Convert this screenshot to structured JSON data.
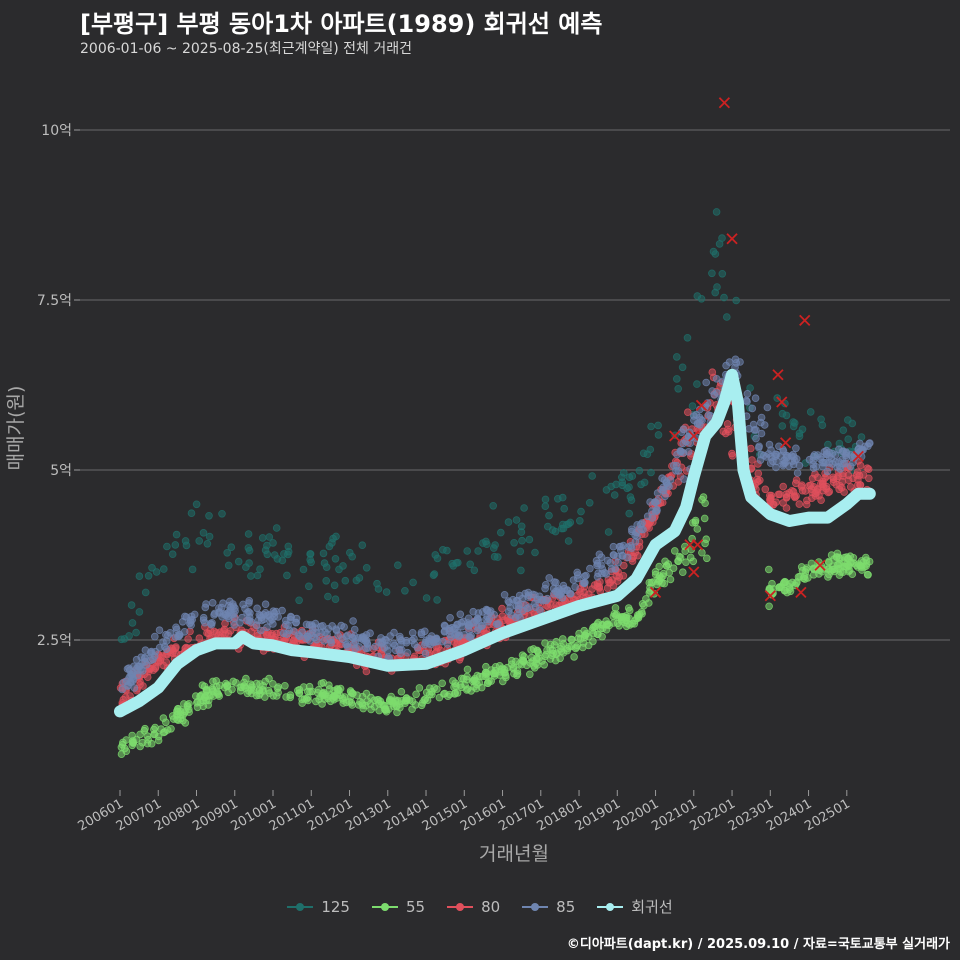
{
  "header": {
    "title": "[부평구] 부평 동아1차 아파트(1989) 회귀선 예측",
    "subtitle": "2006-01-06 ~ 2025-08-25(최근계약일) 전체 거래건"
  },
  "footer": "©디아파트(dapt.kr) / 2025.09.10 / 자료=국토교통부 실거래가",
  "colors": {
    "s125": "#1f6f6a",
    "s55": "#7ddc6e",
    "s80": "#e0505c",
    "s85": "#6f85b0",
    "regression": "#a8eef0",
    "grid": "#6a6a6a",
    "cancel_mark": "#cc2222"
  },
  "legend": [
    {
      "key": "s125",
      "label": "125"
    },
    {
      "key": "s55",
      "label": "55"
    },
    {
      "key": "s80",
      "label": "80"
    },
    {
      "key": "s85",
      "label": "85"
    },
    {
      "key": "regression",
      "label": "회귀선"
    }
  ],
  "chart_data": {
    "type": "scatter",
    "title": "[부평구] 부평 동아1차 아파트(1989) 회귀선 예측",
    "xlabel": "거래년월",
    "ylabel": "매매가(원)",
    "x_range": [
      2006.0,
      2025.92
    ],
    "ylim": [
      0.8,
      10.9
    ],
    "y_ticks": [
      {
        "v": 2.5,
        "label": "2.5억"
      },
      {
        "v": 5,
        "label": "5억"
      },
      {
        "v": 7.5,
        "label": "7.5억"
      },
      {
        "v": 10,
        "label": "10억"
      }
    ],
    "x_ticks": [
      {
        "v": 2006.0,
        "label": "200601"
      },
      {
        "v": 2007.0,
        "label": "200701"
      },
      {
        "v": 2008.0,
        "label": "200801"
      },
      {
        "v": 2009.0,
        "label": "200901"
      },
      {
        "v": 2010.0,
        "label": "201001"
      },
      {
        "v": 2011.0,
        "label": "201101"
      },
      {
        "v": 2012.0,
        "label": "201201"
      },
      {
        "v": 2013.0,
        "label": "201301"
      },
      {
        "v": 2014.0,
        "label": "201401"
      },
      {
        "v": 2015.0,
        "label": "201501"
      },
      {
        "v": 2016.0,
        "label": "201601"
      },
      {
        "v": 2017.0,
        "label": "201701"
      },
      {
        "v": 2018.0,
        "label": "201801"
      },
      {
        "v": 2019.0,
        "label": "201901"
      },
      {
        "v": 2020.0,
        "label": "202001"
      },
      {
        "v": 2021.0,
        "label": "202101"
      },
      {
        "v": 2022.0,
        "label": "202201"
      },
      {
        "v": 2023.0,
        "label": "202301"
      },
      {
        "v": 2024.0,
        "label": "202401"
      },
      {
        "v": 2025.0,
        "label": "202501"
      }
    ],
    "regression": {
      "name": "회귀선",
      "x": [
        2006.0,
        2006.5,
        2007.0,
        2007.5,
        2008.0,
        2008.5,
        2009.0,
        2009.2,
        2009.5,
        2010.0,
        2010.5,
        2011.0,
        2012.0,
        2013.0,
        2014.0,
        2015.0,
        2016.0,
        2017.0,
        2018.0,
        2019.0,
        2019.5,
        2020.0,
        2020.5,
        2020.8,
        2021.0,
        2021.3,
        2021.6,
        2021.8,
        2022.0,
        2022.15,
        2022.3,
        2022.5,
        2023.0,
        2023.5,
        2024.0,
        2024.5,
        2025.0,
        2025.3,
        2025.6
      ],
      "y": [
        1.45,
        1.6,
        1.8,
        2.15,
        2.35,
        2.45,
        2.45,
        2.55,
        2.45,
        2.42,
        2.35,
        2.32,
        2.25,
        2.12,
        2.15,
        2.35,
        2.6,
        2.8,
        3.0,
        3.15,
        3.4,
        3.9,
        4.1,
        4.45,
        4.9,
        5.5,
        5.7,
        6.0,
        6.4,
        6.0,
        5.0,
        4.6,
        4.35,
        4.25,
        4.3,
        4.3,
        4.5,
        4.65,
        4.65
      ]
    },
    "series": [
      {
        "name": "125",
        "key": "s125",
        "anchors": {
          "x": [
            2006.0,
            2007.0,
            2008.0,
            2009.0,
            2010.0,
            2011.0,
            2012.0,
            2013.0,
            2014.0,
            2015.0,
            2016.0,
            2017.0,
            2018.0,
            2019.0,
            2020.0,
            2021.0,
            2021.5,
            2022.0,
            2023.0,
            2024.0,
            2025.0,
            2025.6
          ],
          "y": [
            2.7,
            3.6,
            4.1,
            3.8,
            3.7,
            3.6,
            3.55,
            3.45,
            3.45,
            3.7,
            4.0,
            4.2,
            4.35,
            4.6,
            5.2,
            7.0,
            8.4,
            6.5,
            5.8,
            5.6,
            5.3,
            5.3
          ]
        },
        "spread": 0.35
      },
      {
        "name": "55",
        "key": "s55",
        "anchors": {
          "x": [
            2006.0,
            2006.5,
            2007.0,
            2007.5,
            2008.0,
            2008.5,
            2009.0,
            2009.5,
            2010.0,
            2011.0,
            2012.0,
            2013.0,
            2014.0,
            2015.0,
            2016.0,
            2017.0,
            2018.0,
            2019.0,
            2019.5,
            2020.0,
            2020.5,
            2021.0,
            2021.3,
            2023.0,
            2023.5,
            2024.0,
            2024.5,
            2025.0,
            2025.6
          ],
          "y": [
            0.95,
            1.0,
            1.15,
            1.4,
            1.6,
            1.75,
            1.8,
            1.8,
            1.75,
            1.7,
            1.65,
            1.55,
            1.65,
            1.85,
            2.05,
            2.25,
            2.45,
            2.85,
            2.8,
            3.4,
            3.6,
            3.9,
            4.2,
            3.2,
            3.3,
            3.5,
            3.6,
            3.6,
            3.6
          ]
        },
        "spread": 0.12
      },
      {
        "name": "80",
        "key": "s80",
        "anchors": {
          "x": [
            2006.0,
            2007.0,
            2008.0,
            2009.0,
            2010.0,
            2011.0,
            2012.0,
            2013.0,
            2014.0,
            2015.0,
            2016.0,
            2017.0,
            2018.0,
            2019.0,
            2020.0,
            2021.0,
            2021.5,
            2022.0,
            2022.5,
            2023.0,
            2024.0,
            2025.0,
            2025.6
          ],
          "y": [
            1.6,
            2.2,
            2.5,
            2.6,
            2.55,
            2.45,
            2.35,
            2.2,
            2.3,
            2.45,
            2.75,
            2.95,
            3.15,
            3.45,
            4.4,
            5.5,
            6.3,
            5.6,
            5.0,
            4.6,
            4.7,
            4.9,
            4.9
          ]
        },
        "spread": 0.15
      },
      {
        "name": "85",
        "key": "s85",
        "anchors": {
          "x": [
            2006.0,
            2007.0,
            2008.0,
            2009.0,
            2010.0,
            2011.0,
            2012.0,
            2013.0,
            2014.0,
            2015.0,
            2016.0,
            2017.0,
            2018.0,
            2019.0,
            2020.0,
            2021.0,
            2022.0,
            2023.0,
            2024.0,
            2025.0,
            2025.6
          ],
          "y": [
            1.8,
            2.4,
            2.85,
            2.9,
            2.8,
            2.65,
            2.55,
            2.4,
            2.5,
            2.7,
            2.95,
            3.15,
            3.35,
            3.7,
            4.5,
            5.6,
            6.5,
            5.2,
            5.1,
            5.2,
            5.3
          ]
        },
        "spread": 0.14
      }
    ]
  }
}
